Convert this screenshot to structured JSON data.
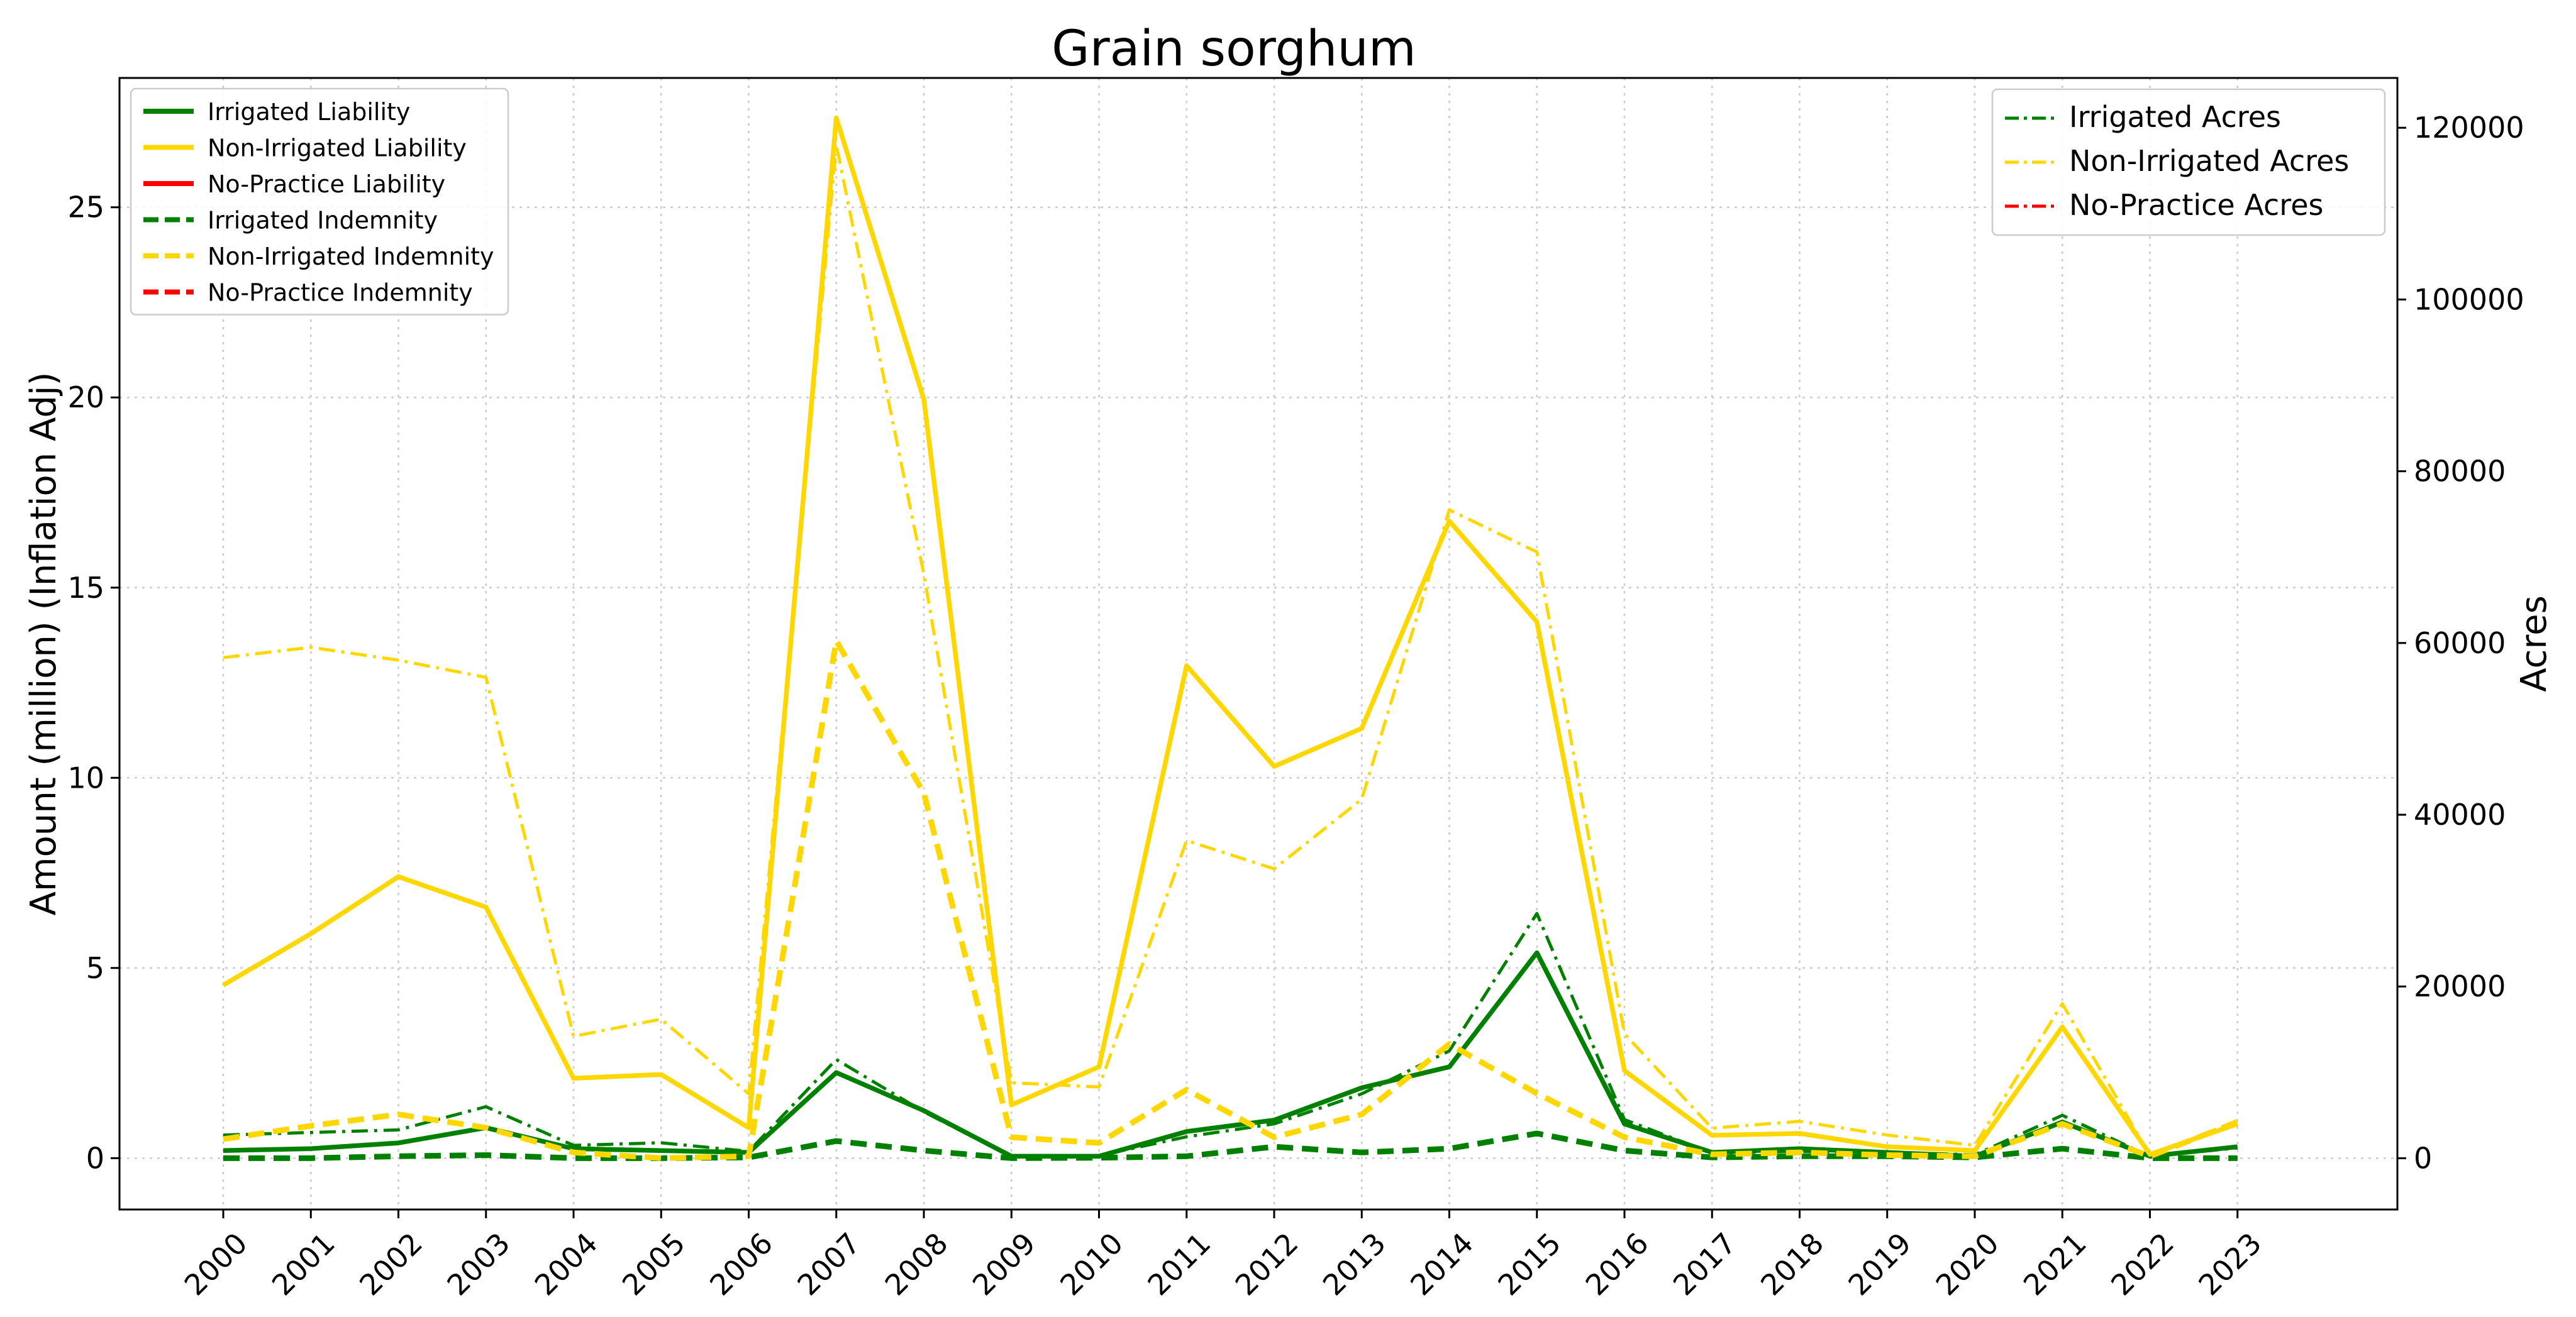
{
  "chart_data": {
    "type": "line",
    "title": "Grain sorghum",
    "ylabel_left": "Amount (million) (Inflation Adj)",
    "ylabel_right": "Acres",
    "x": [
      "2000",
      "2001",
      "2002",
      "2003",
      "2004",
      "2005",
      "2006",
      "2007",
      "2008",
      "2009",
      "2010",
      "2011",
      "2012",
      "2013",
      "2014",
      "2015",
      "2016",
      "2017",
      "2018",
      "2019",
      "2020",
      "2021",
      "2022",
      "2023"
    ],
    "ylim_left": [
      -1.35,
      28.4
    ],
    "ylim_right": [
      -5970,
      125800
    ],
    "yticks_left": [
      0,
      5,
      10,
      15,
      20,
      25
    ],
    "yticks_right": [
      0,
      20000,
      40000,
      60000,
      80000,
      100000,
      120000
    ],
    "grid": true,
    "legend_left_position": "top-left",
    "legend_right_position": "top-right",
    "series_left": [
      {
        "name": "Irrigated Liability",
        "color": "#008000",
        "style": "solid",
        "values": [
          0.2,
          0.25,
          0.4,
          0.8,
          0.25,
          0.2,
          0.15,
          2.25,
          1.25,
          0.05,
          0.05,
          0.7,
          1.0,
          1.85,
          2.4,
          5.4,
          0.9,
          0.15,
          0.25,
          0.15,
          0.05,
          0.95,
          0.05,
          0.3
        ]
      },
      {
        "name": "Non-Irrigated Liability",
        "color": "#ffd700",
        "style": "solid",
        "values": [
          4.55,
          5.9,
          7.4,
          6.6,
          2.1,
          2.2,
          0.8,
          27.35,
          19.95,
          1.4,
          2.4,
          12.95,
          10.3,
          11.3,
          16.75,
          14.1,
          2.3,
          0.6,
          0.65,
          0.3,
          0.2,
          3.45,
          0.1,
          0.9
        ]
      },
      {
        "name": "No-Practice Liability",
        "color": "#ff0000",
        "style": "solid",
        "values": []
      },
      {
        "name": "Irrigated Indemnity",
        "color": "#008000",
        "style": "dashed",
        "values": [
          0,
          0,
          0.05,
          0.08,
          0,
          0,
          0.02,
          0.45,
          0.2,
          0,
          0.01,
          0.05,
          0.3,
          0.15,
          0.25,
          0.65,
          0.2,
          0.02,
          0.05,
          0.05,
          0.02,
          0.25,
          0,
          0
        ]
      },
      {
        "name": "Non-Irrigated Indemnity",
        "color": "#ffd700",
        "style": "dashed",
        "values": [
          0.5,
          0.85,
          1.15,
          0.8,
          0.15,
          0,
          0.05,
          13.6,
          9.6,
          0.55,
          0.4,
          1.8,
          0.55,
          1.15,
          3.0,
          1.7,
          0.55,
          0.1,
          0.15,
          0.08,
          0.05,
          0.9,
          0.05,
          0.95
        ]
      },
      {
        "name": "No-Practice Indemnity",
        "color": "#ff0000",
        "style": "dashed",
        "values": []
      }
    ],
    "series_right": [
      {
        "name": "Irrigated Acres",
        "color": "#008000",
        "style": "dashdot",
        "values": [
          2700,
          3000,
          3300,
          6000,
          1500,
          1800,
          800,
          11500,
          5400,
          200,
          300,
          2500,
          4000,
          7500,
          12500,
          28500,
          4500,
          600,
          800,
          700,
          400,
          5000,
          200,
          1200
        ]
      },
      {
        "name": "Non-Irrigated Acres",
        "color": "#ffd700",
        "style": "dashdot",
        "values": [
          58300,
          59500,
          58000,
          56000,
          14200,
          16200,
          7500,
          118000,
          68000,
          8800,
          8300,
          37000,
          33700,
          41800,
          75500,
          70600,
          14500,
          3500,
          4300,
          2700,
          1500,
          18000,
          300,
          4400
        ]
      },
      {
        "name": "No-Practice Acres",
        "color": "#ff0000",
        "style": "dashdot",
        "values": []
      }
    ]
  }
}
